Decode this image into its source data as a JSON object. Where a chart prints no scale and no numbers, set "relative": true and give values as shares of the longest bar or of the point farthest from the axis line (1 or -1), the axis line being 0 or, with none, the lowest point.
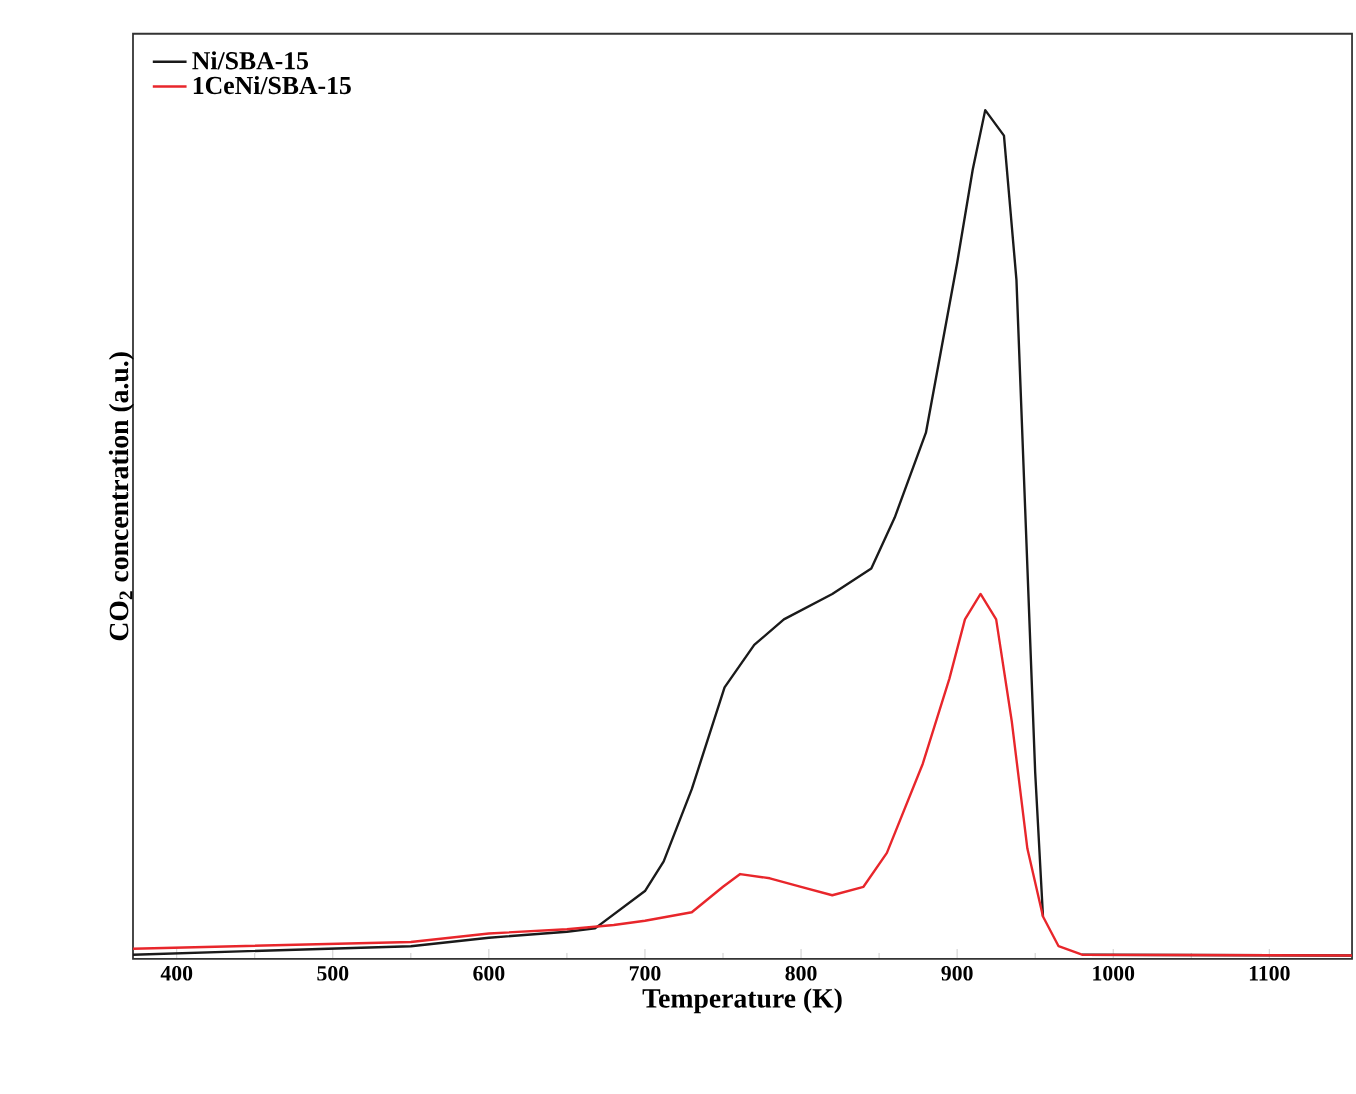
{
  "chart_data": {
    "type": "line",
    "xlabel": "Temperature (K)",
    "ylabel": "CO$_{2}$ concentration (a.u.)",
    "relative": true,
    "xlim": [
      372,
      1153
    ],
    "xticks": [
      400,
      500,
      600,
      700,
      800,
      900,
      1000,
      1100
    ],
    "legend": "top left",
    "marker": "none",
    "line_style": "solid",
    "grid": false,
    "series": [
      {
        "name": "Ni/SBA-15",
        "color": "#1a1a1a",
        "x": [
          372,
          550,
          600,
          650,
          668,
          700,
          712,
          730,
          751,
          770,
          789,
          820,
          845,
          860,
          880,
          900,
          910,
          918,
          930,
          938,
          944,
          950,
          955,
          965,
          980,
          1153
        ],
        "values": [
          0.005,
          0.015,
          0.025,
          0.032,
          0.036,
          0.08,
          0.115,
          0.2,
          0.32,
          0.37,
          0.4,
          0.43,
          0.46,
          0.52,
          0.62,
          0.82,
          0.93,
          1.0,
          0.97,
          0.8,
          0.51,
          0.22,
          0.05,
          null,
          0.005,
          0.004
        ]
      },
      {
        "name": "1CeNi/SBA-15",
        "color": "#e8262b",
        "x": [
          372,
          550,
          600,
          650,
          680,
          700,
          730,
          750,
          761,
          780,
          800,
          820,
          840,
          855,
          878,
          895,
          905,
          915,
          925,
          935,
          945,
          955,
          965,
          980,
          1153
        ],
        "values": [
          0.012,
          0.02,
          0.03,
          0.035,
          0.04,
          0.045,
          0.055,
          0.085,
          0.1,
          0.095,
          0.085,
          0.075,
          0.085,
          0.125,
          0.23,
          0.33,
          0.4,
          0.43,
          0.4,
          0.28,
          0.13,
          0.05,
          0.015,
          0.005,
          0.004
        ]
      }
    ]
  }
}
